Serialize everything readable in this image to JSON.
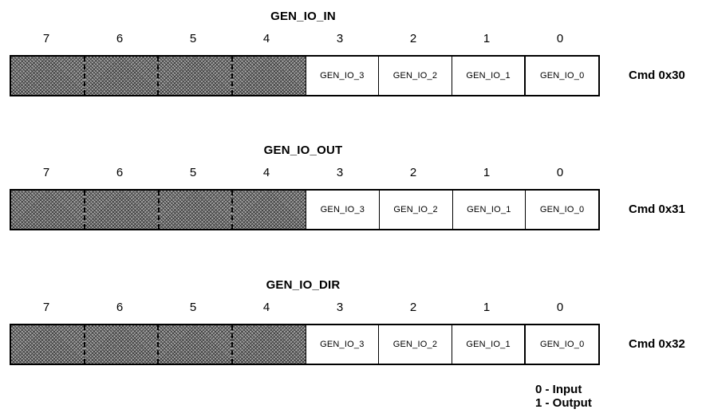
{
  "bit_numbers": [
    "7",
    "6",
    "5",
    "4",
    "3",
    "2",
    "1",
    "0"
  ],
  "registers": [
    {
      "title": "GEN_IO_IN",
      "cells": [
        "",
        "",
        "",
        "",
        "GEN_IO_3",
        "GEN_IO_2",
        "GEN_IO_1",
        "GEN_IO_0"
      ],
      "command": "Cmd 0x30"
    },
    {
      "title": "GEN_IO_OUT",
      "cells": [
        "",
        "",
        "",
        "",
        "GEN_IO_3",
        "GEN_IO_2",
        "GEN_IO_1",
        "GEN_IO_0"
      ],
      "command": "Cmd 0x31"
    },
    {
      "title": "GEN_IO_DIR",
      "cells": [
        "",
        "",
        "",
        "",
        "GEN_IO_3",
        "GEN_IO_2",
        "GEN_IO_1",
        "GEN_IO_0"
      ],
      "command": "Cmd 0x32"
    }
  ],
  "legend": {
    "line1": "0 - Input",
    "line2": "1 - Output"
  }
}
